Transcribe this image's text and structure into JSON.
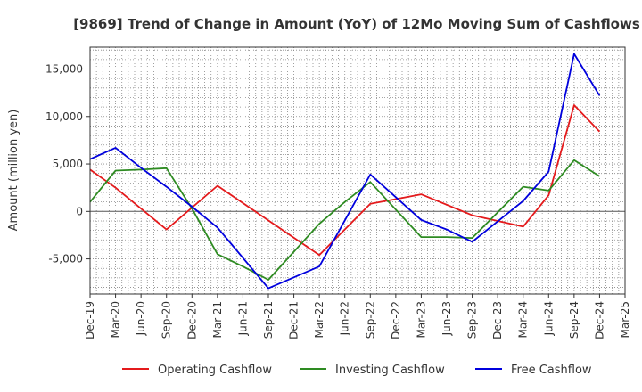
{
  "chart_data": {
    "type": "line",
    "title": "[9869]  Trend of Change in Amount (YoY) of 12Mo Moving Sum of Cashflows",
    "xlabel": "",
    "ylabel": "Amount (million yen)",
    "ylim": [
      -8700,
      17300
    ],
    "yticks": [
      15000,
      10000,
      5000,
      0,
      -5000
    ],
    "ytick_labels": [
      "15,000",
      "10,000",
      "5,000",
      "0",
      "-5,000"
    ],
    "x_tick_labels": [
      "Dec-19",
      "Mar-20",
      "Jun-20",
      "Sep-20",
      "Dec-20",
      "Mar-21",
      "Jun-21",
      "Sep-21",
      "Dec-21",
      "Mar-22",
      "Jun-22",
      "Sep-22",
      "Dec-22",
      "Mar-23",
      "Jun-23",
      "Sep-23",
      "Dec-23",
      "Mar-24",
      "Jun-24",
      "Sep-24",
      "Dec-24",
      "Mar-25"
    ],
    "grid": true,
    "legend_position": "bottom",
    "series": [
      {
        "name": "Operating Cashflow",
        "color": "#e41a1c",
        "values": [
          4400,
          2500,
          null,
          -1900,
          null,
          2700,
          null,
          null,
          null,
          -4600,
          null,
          800,
          1300,
          1800,
          null,
          -400,
          -1000,
          -1600,
          1700,
          11200,
          8400,
          null
        ]
      },
      {
        "name": "Investing Cashflow",
        "color": "#2e8b22",
        "values": [
          1000,
          4300,
          4400,
          4550,
          300,
          -4500,
          -5800,
          -7200,
          null,
          -1300,
          1000,
          3100,
          null,
          -2700,
          -2700,
          -2800,
          null,
          2600,
          2200,
          5400,
          3700,
          null
        ]
      },
      {
        "name": "Free Cashflow",
        "color": "#0000dd",
        "values": [
          5500,
          6700,
          4600,
          2600,
          500,
          -1700,
          null,
          -8100,
          null,
          -5800,
          null,
          3900,
          1500,
          -900,
          -1900,
          -3200,
          null,
          1100,
          4200,
          16600,
          12200,
          null
        ]
      }
    ]
  }
}
